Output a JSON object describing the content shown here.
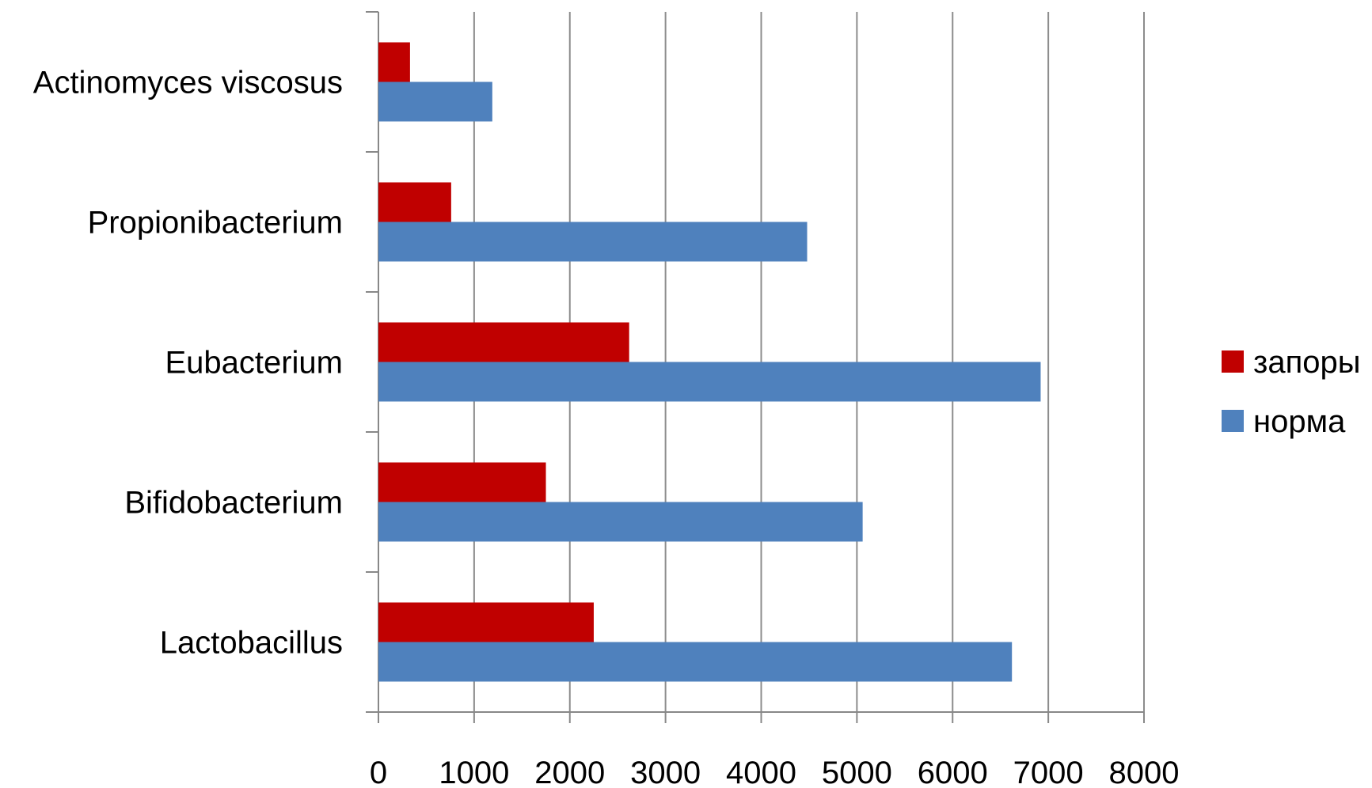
{
  "chart_data": {
    "type": "bar",
    "orientation": "horizontal",
    "categories": [
      "Lactobacillus",
      "Bifidobacterium",
      "Eubacterium",
      "Propionibacterium",
      "Actinomyces viscosus"
    ],
    "series": [
      {
        "name": "запоры",
        "color": "#C00000",
        "values": [
          2250,
          1750,
          2620,
          760,
          330
        ]
      },
      {
        "name": "норма",
        "color": "#4F81BD",
        "values": [
          6620,
          5060,
          6920,
          4480,
          1190
        ]
      }
    ],
    "xlim": [
      0,
      8000
    ],
    "xticks": [
      "0",
      "1000",
      "2000",
      "3000",
      "4000",
      "5000",
      "6000",
      "7000",
      "8000"
    ],
    "grid": true,
    "legend_position": "right",
    "title": "",
    "xlabel": "",
    "ylabel": ""
  }
}
